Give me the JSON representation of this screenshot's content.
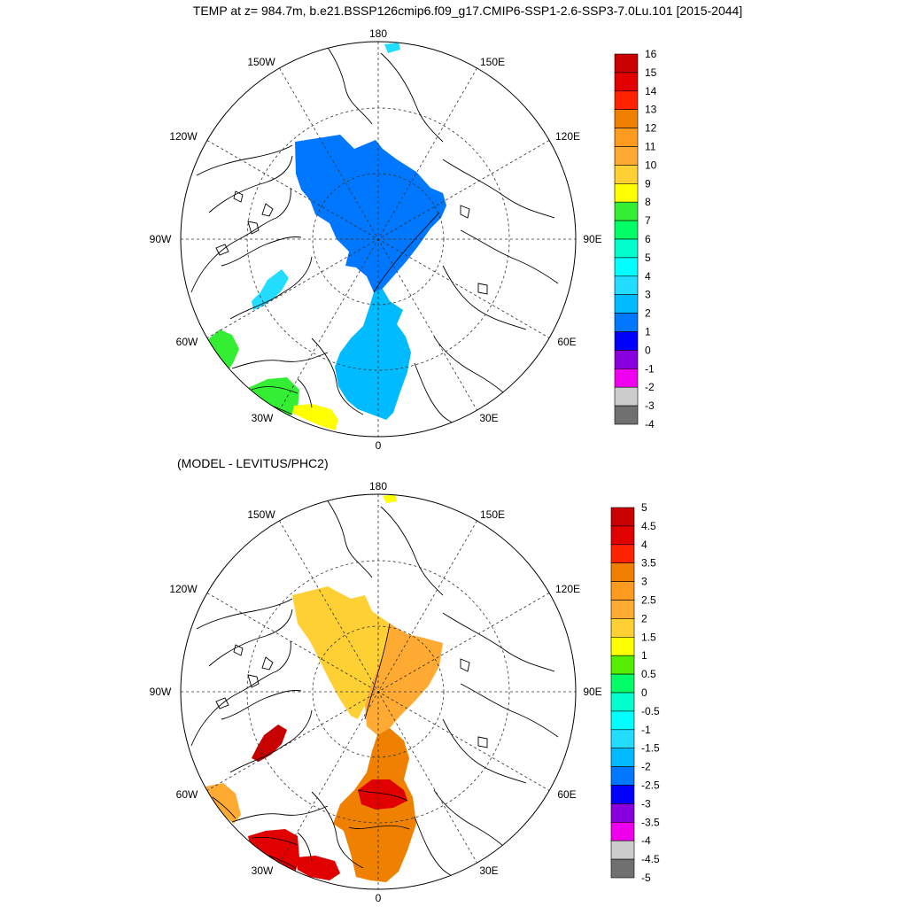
{
  "title": "TEMP at z= 984.7m, b.e21.BSSP126cmip6.f09_g17.CMIP6-SSP1-2.6-SSP3-7.0Lu.101 [2015-2044]",
  "panel2_title": "(MODEL - LEVITUS/PHC2)",
  "lon_labels": {
    "l180": "180",
    "l150W": "150W",
    "l150E": "150E",
    "l120W": "120W",
    "l120E": "120E",
    "l90W": "90W",
    "l90E": "90E",
    "l60W": "60W",
    "l60E": "60E",
    "l30W": "30W",
    "l30E": "30E",
    "l0": "0"
  },
  "colorbar_top": {
    "labels": [
      "16",
      "15",
      "14",
      "13",
      "12",
      "11",
      "10",
      "9",
      "8",
      "7",
      "6",
      "5",
      "4",
      "3",
      "2",
      "1",
      "0",
      "-1",
      "-2",
      "-3",
      "-4"
    ],
    "colors": [
      "#c80000",
      "#e00000",
      "#ff2200",
      "#f08000",
      "#ff9a20",
      "#ffaa33",
      "#ffd033",
      "#ffff00",
      "#33ee33",
      "#00ff66",
      "#00ffcc",
      "#00ffff",
      "#22ddff",
      "#00bbff",
      "#0077ff",
      "#0000ff",
      "#8800dd",
      "#ee00ee",
      "#cccccc",
      "#707070"
    ]
  },
  "colorbar_bottom": {
    "labels": [
      "5",
      "4.5",
      "4",
      "3.5",
      "3",
      "2.5",
      "2",
      "1.5",
      "1",
      "0.5",
      "0",
      "-0.5",
      "-1",
      "-1.5",
      "-2",
      "-2.5",
      "-3",
      "-3.5",
      "-4",
      "-4.5",
      "-5"
    ],
    "colors": [
      "#c80000",
      "#e00000",
      "#ff2200",
      "#f08000",
      "#ff9a20",
      "#ffaa33",
      "#ffd033",
      "#ffff00",
      "#55ee00",
      "#00ff66",
      "#00ffcc",
      "#00ffff",
      "#22ddff",
      "#00bbff",
      "#0077ff",
      "#0000ff",
      "#8800dd",
      "#ee00ee",
      "#cccccc",
      "#707070"
    ]
  }
}
